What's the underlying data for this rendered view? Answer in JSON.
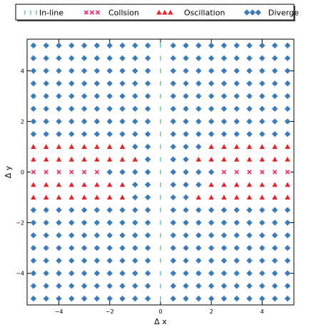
{
  "chart_data": {
    "type": "scatter",
    "title": "",
    "xlabel": "Δ x",
    "ylabel": "Δ y",
    "xlim": [
      -5.25,
      5.25
    ],
    "ylim": [
      -5.25,
      5.25
    ],
    "x_ticks": [
      -4,
      -2,
      0,
      2,
      4
    ],
    "y_ticks": [
      -4,
      -2,
      0,
      2,
      4
    ],
    "grid": false,
    "legend_position": "top",
    "grid_points": {
      "x_start": -5.0,
      "x_end": 5.0,
      "y_start": -5.0,
      "y_end": 5.0,
      "step": 0.5
    },
    "series": [
      {
        "name": "In-line",
        "marker": "vline",
        "color": "#3aa58a",
        "rule": "x == 0"
      },
      {
        "name": "Collsion",
        "marker": "x",
        "color": "#e8317a",
        "points": [
          [
            -5.0,
            0.0
          ],
          [
            -4.5,
            0.0
          ],
          [
            -4.0,
            0.0
          ],
          [
            -3.5,
            0.0
          ],
          [
            -3.0,
            0.0
          ],
          [
            -2.5,
            0.0
          ],
          [
            2.5,
            0.0
          ],
          [
            3.0,
            0.0
          ],
          [
            3.5,
            0.0
          ],
          [
            4.0,
            0.0
          ],
          [
            4.5,
            0.0
          ],
          [
            5.0,
            0.0
          ]
        ]
      },
      {
        "name": "Oscillation",
        "marker": "triangle",
        "color": "#e0262b",
        "points": [
          [
            -5.0,
            1.0
          ],
          [
            -4.5,
            1.0
          ],
          [
            -4.0,
            1.0
          ],
          [
            -3.5,
            1.0
          ],
          [
            -3.0,
            1.0
          ],
          [
            -2.5,
            1.0
          ],
          [
            -2.0,
            1.0
          ],
          [
            -1.5,
            1.0
          ],
          [
            2.0,
            1.0
          ],
          [
            2.5,
            1.0
          ],
          [
            3.0,
            1.0
          ],
          [
            3.5,
            1.0
          ],
          [
            4.0,
            1.0
          ],
          [
            4.5,
            1.0
          ],
          [
            5.0,
            1.0
          ],
          [
            -5.0,
            0.5
          ],
          [
            -4.5,
            0.5
          ],
          [
            -4.0,
            0.5
          ],
          [
            -3.5,
            0.5
          ],
          [
            -3.0,
            0.5
          ],
          [
            -2.5,
            0.5
          ],
          [
            -2.0,
            0.5
          ],
          [
            -1.5,
            0.5
          ],
          [
            -1.0,
            0.5
          ],
          [
            1.5,
            0.5
          ],
          [
            2.0,
            0.5
          ],
          [
            2.5,
            0.5
          ],
          [
            3.0,
            0.5
          ],
          [
            3.5,
            0.5
          ],
          [
            4.0,
            0.5
          ],
          [
            4.5,
            0.5
          ],
          [
            5.0,
            0.5
          ],
          [
            -5.0,
            -0.5
          ],
          [
            -4.5,
            -0.5
          ],
          [
            -4.0,
            -0.5
          ],
          [
            -3.5,
            -0.5
          ],
          [
            -3.0,
            -0.5
          ],
          [
            -2.5,
            -0.5
          ],
          [
            -2.0,
            -0.5
          ],
          [
            -1.5,
            -0.5
          ],
          [
            2.0,
            -0.5
          ],
          [
            2.5,
            -0.5
          ],
          [
            3.0,
            -0.5
          ],
          [
            3.5,
            -0.5
          ],
          [
            4.0,
            -0.5
          ],
          [
            4.5,
            -0.5
          ],
          [
            5.0,
            -0.5
          ],
          [
            -5.0,
            -1.0
          ],
          [
            -4.5,
            -1.0
          ],
          [
            -4.0,
            -1.0
          ],
          [
            -3.5,
            -1.0
          ],
          [
            -3.0,
            -1.0
          ],
          [
            -2.5,
            -1.0
          ],
          [
            -2.0,
            -1.0
          ],
          [
            -1.5,
            -1.0
          ],
          [
            1.5,
            -1.0
          ],
          [
            2.0,
            -1.0
          ],
          [
            2.5,
            -1.0
          ],
          [
            3.0,
            -1.0
          ],
          [
            3.5,
            -1.0
          ],
          [
            4.0,
            -1.0
          ],
          [
            4.5,
            -1.0
          ],
          [
            5.0,
            -1.0
          ]
        ]
      },
      {
        "name": "Diverge",
        "marker": "diamond",
        "color": "#3b7cb8",
        "rule": "all remaining grid points"
      }
    ]
  }
}
